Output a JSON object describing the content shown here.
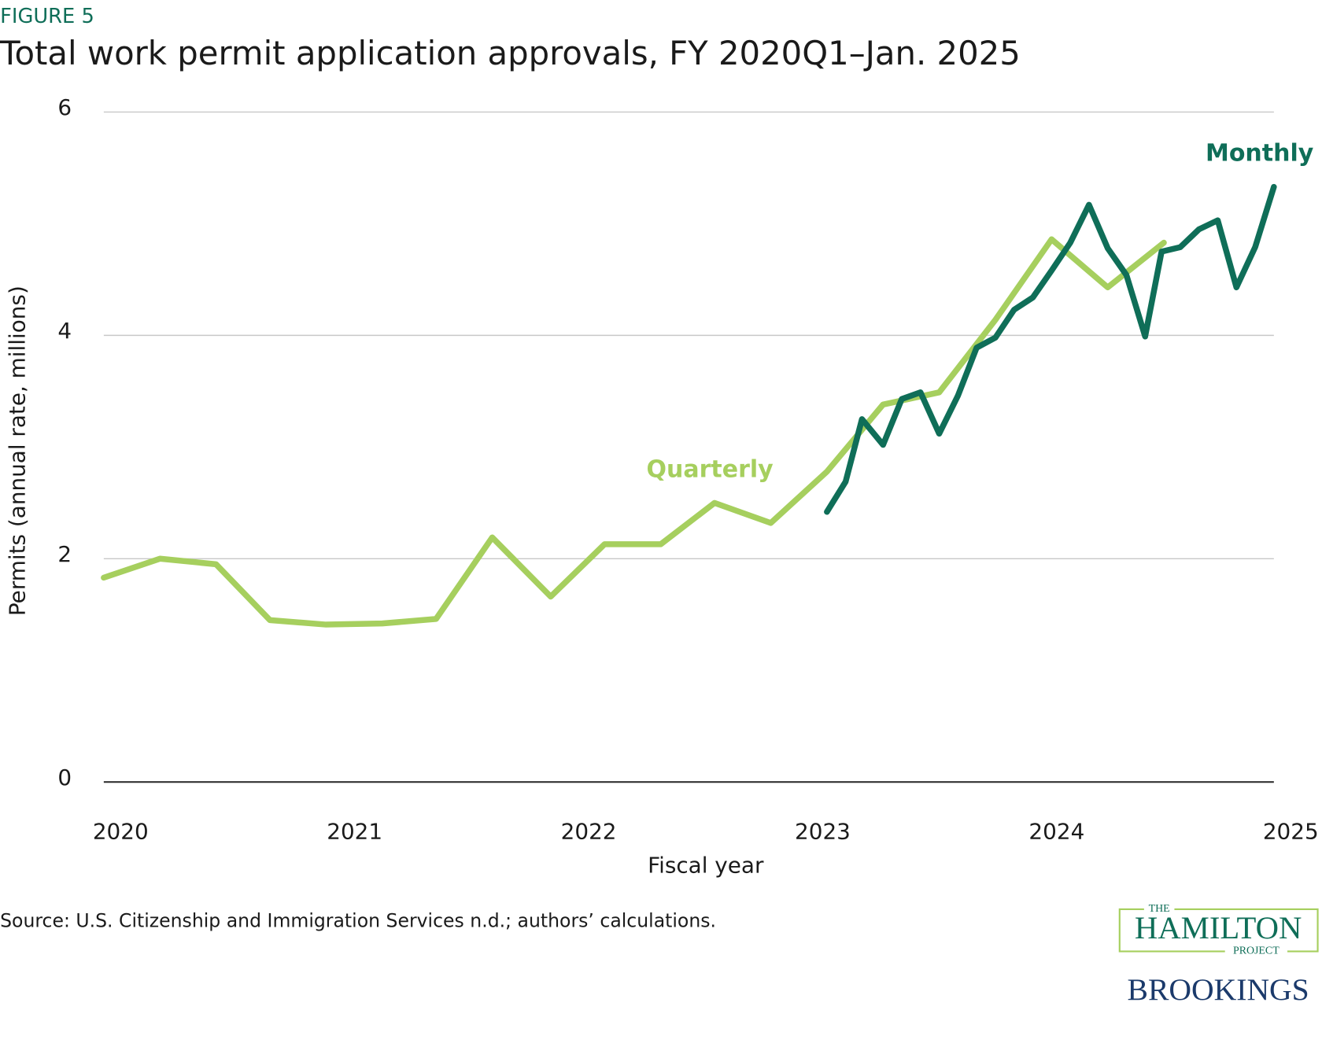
{
  "figure_label": "FIGURE 5",
  "source": "Source: U.S. Citizenship and Immigration Services n.d.; authors’ calculations.",
  "logos": {
    "the": "THE",
    "hamilton": "HAMILTON",
    "project": "PROJECT",
    "brookings": "BROOKINGS"
  },
  "chart_data": {
    "type": "line",
    "title": "Total work permit application approvals, FY 2020Q1–Jan. 2025",
    "x_label": "Fiscal year",
    "y_label": "Permits (annual rate, millions)",
    "xlim": [
      2020,
      2025
    ],
    "xticks": [
      2020,
      2021,
      2022,
      2023,
      2024,
      2025
    ],
    "ylim": [
      0,
      6
    ],
    "yticks": [
      0,
      2,
      4,
      6
    ],
    "grid": true,
    "series": [
      {
        "name": "Quarterly",
        "color": "#a6cf5e",
        "x": [
          2020.0,
          2020.24,
          2020.48,
          2020.71,
          2020.95,
          2021.19,
          2021.42,
          2021.66,
          2021.91,
          2022.14,
          2022.38,
          2022.61,
          2022.85,
          2023.09,
          2023.33,
          2023.57,
          2023.81,
          2024.05,
          2024.29,
          2024.53
        ],
        "values": [
          1.83,
          2.0,
          1.95,
          1.45,
          1.41,
          1.42,
          1.46,
          2.19,
          1.66,
          2.13,
          2.13,
          2.5,
          2.32,
          2.78,
          3.38,
          3.49,
          4.14,
          4.86,
          4.43,
          4.83
        ]
      },
      {
        "name": "Monthly",
        "color": "#0f6e58",
        "x": [
          2023.09,
          2023.17,
          2023.24,
          2023.33,
          2023.41,
          2023.49,
          2023.57,
          2023.65,
          2023.73,
          2023.81,
          2023.89,
          2023.97,
          2024.05,
          2024.13,
          2024.21,
          2024.29,
          2024.37,
          2024.45,
          2024.52,
          2024.6,
          2024.68,
          2024.76,
          2024.84,
          2024.92,
          2025.0
        ],
        "values": [
          2.42,
          2.69,
          3.25,
          3.02,
          3.43,
          3.49,
          3.12,
          3.46,
          3.89,
          3.98,
          4.23,
          4.34,
          4.58,
          4.83,
          5.17,
          4.78,
          4.54,
          3.99,
          4.75,
          4.79,
          4.95,
          5.03,
          4.43,
          4.79,
          5.33
        ]
      }
    ]
  }
}
